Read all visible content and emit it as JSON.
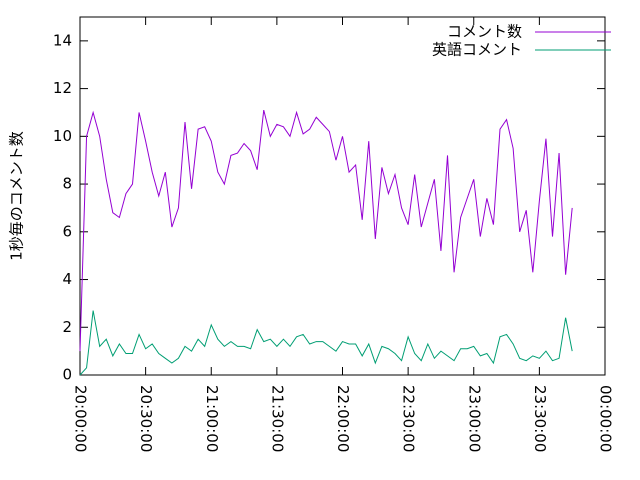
{
  "chart_data": {
    "type": "line",
    "ylabel": "1秒毎のコメント数",
    "x": [
      72000,
      72180,
      72360,
      72540,
      72720,
      72900,
      73080,
      73260,
      73440,
      73620,
      73800,
      73980,
      74160,
      74340,
      74520,
      74700,
      74880,
      75060,
      75240,
      75420,
      75600,
      75780,
      75960,
      76140,
      76320,
      76500,
      76680,
      76860,
      77040,
      77220,
      77400,
      77580,
      77760,
      77940,
      78120,
      78300,
      78480,
      78660,
      78840,
      79020,
      79200,
      79380,
      79560,
      79740,
      79920,
      80100,
      80280,
      80460,
      80640,
      80820,
      81000,
      81180,
      81360,
      81540,
      81720,
      81900,
      82080,
      82260,
      82440,
      82620,
      82800,
      82980,
      83160,
      83340,
      83520,
      83700,
      83880,
      84060,
      84240,
      84420,
      84600,
      84780,
      84960,
      85140,
      85320,
      85500
    ],
    "series": [
      {
        "name": "コメント数",
        "color": "#9400d3",
        "values": [
          1.0,
          10.0,
          11.0,
          10.0,
          8.2,
          6.8,
          6.6,
          7.6,
          8.0,
          11.0,
          9.8,
          8.5,
          7.5,
          8.5,
          6.2,
          7.0,
          10.6,
          7.8,
          10.3,
          10.4,
          9.8,
          8.5,
          8.0,
          9.2,
          9.3,
          9.7,
          9.4,
          8.6,
          11.1,
          10.0,
          10.5,
          10.4,
          10.0,
          11.0,
          10.1,
          10.3,
          10.8,
          10.5,
          10.2,
          9.0,
          10.0,
          8.5,
          8.8,
          6.5,
          9.8,
          5.7,
          8.7,
          7.6,
          8.4,
          7.0,
          6.3,
          8.4,
          6.2,
          7.2,
          8.2,
          5.2,
          9.2,
          4.3,
          6.6,
          7.4,
          8.2,
          5.8,
          7.4,
          6.3,
          10.3,
          10.7,
          9.5,
          6.0,
          6.9,
          4.3,
          7.3,
          9.9,
          5.8,
          9.3,
          4.2,
          7.0
        ]
      },
      {
        "name": "英語コメント",
        "color": "#009e73",
        "values": [
          0.0,
          0.3,
          2.7,
          1.2,
          1.5,
          0.8,
          1.3,
          0.9,
          0.9,
          1.7,
          1.1,
          1.3,
          0.9,
          0.7,
          0.5,
          0.7,
          1.2,
          1.0,
          1.5,
          1.2,
          2.1,
          1.5,
          1.2,
          1.4,
          1.2,
          1.2,
          1.1,
          1.9,
          1.4,
          1.5,
          1.2,
          1.5,
          1.2,
          1.6,
          1.7,
          1.3,
          1.4,
          1.4,
          1.2,
          1.0,
          1.4,
          1.3,
          1.3,
          0.8,
          1.3,
          0.5,
          1.2,
          1.1,
          0.9,
          0.6,
          1.6,
          0.9,
          0.6,
          1.3,
          0.7,
          1.0,
          0.8,
          0.6,
          1.1,
          1.1,
          1.2,
          0.8,
          0.9,
          0.5,
          1.6,
          1.7,
          1.3,
          0.7,
          0.6,
          0.8,
          0.7,
          1.0,
          0.6,
          0.7,
          2.4,
          1.0
        ]
      }
    ],
    "xlim": [
      72000,
      86400
    ],
    "xticks": [
      {
        "value": 72000,
        "label": "20:00:00"
      },
      {
        "value": 73800,
        "label": "20:30:00"
      },
      {
        "value": 75600,
        "label": "21:00:00"
      },
      {
        "value": 77400,
        "label": "21:30:00"
      },
      {
        "value": 79200,
        "label": "22:00:00"
      },
      {
        "value": 81000,
        "label": "22:30:00"
      },
      {
        "value": 82800,
        "label": "23:00:00"
      },
      {
        "value": 84600,
        "label": "23:30:00"
      },
      {
        "value": 86400,
        "label": "00:00:00"
      }
    ],
    "ylim": [
      0,
      15
    ],
    "yticks": [
      0,
      2,
      4,
      6,
      8,
      10,
      12,
      14
    ],
    "legend": "top-right"
  }
}
